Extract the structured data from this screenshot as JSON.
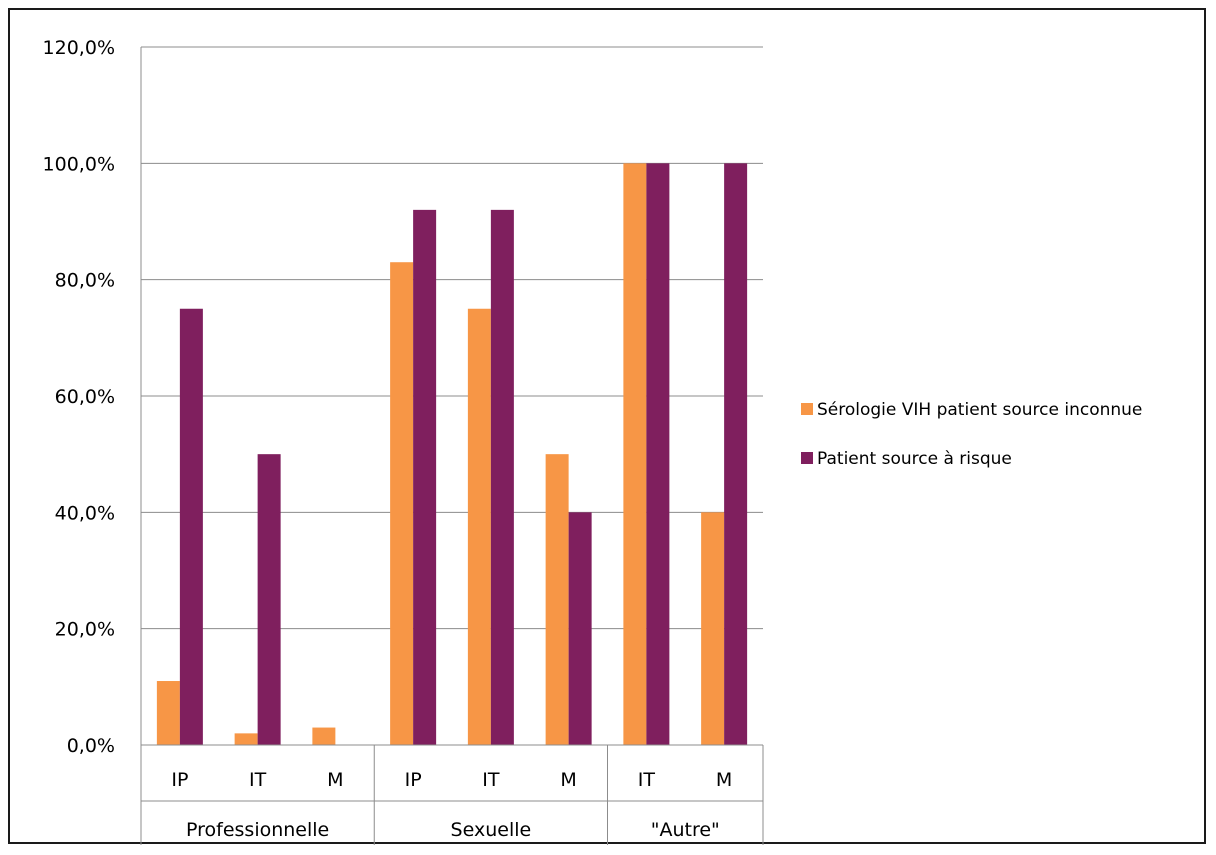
{
  "chart_data": {
    "type": "bar",
    "title": "",
    "xlabel": "",
    "ylabel": "",
    "ylim": [
      0,
      120
    ],
    "y_ticks": [
      {
        "value": 0,
        "label": "0,0%"
      },
      {
        "value": 20,
        "label": "20,0%"
      },
      {
        "value": 40,
        "label": "40,0%"
      },
      {
        "value": 60,
        "label": "60,0%"
      },
      {
        "value": 80,
        "label": "80,0%"
      },
      {
        "value": 100,
        "label": "100,0%"
      },
      {
        "value": 120,
        "label": "120,0%"
      }
    ],
    "grid": true,
    "legend_position": "right",
    "groups": [
      {
        "label": "Professionnelle",
        "categories": [
          "IP",
          "IT",
          "M"
        ]
      },
      {
        "label": "Sexuelle",
        "categories": [
          "IP",
          "IT",
          "M"
        ]
      },
      {
        "label": "\"Autre\"",
        "categories": [
          "IT",
          "M"
        ]
      }
    ],
    "categories": [
      "IP",
      "IT",
      "M",
      "IP",
      "IT",
      "M",
      "IT",
      "M"
    ],
    "series": [
      {
        "name": "Sérologie VIH patient source inconnue",
        "color": "#F79646",
        "values": [
          11,
          2,
          3,
          83,
          75,
          50,
          100,
          40
        ]
      },
      {
        "name": "Patient source à risque",
        "color": "#7F1F5E",
        "values": [
          75,
          50,
          0,
          92,
          92,
          40,
          100,
          100
        ]
      }
    ]
  }
}
